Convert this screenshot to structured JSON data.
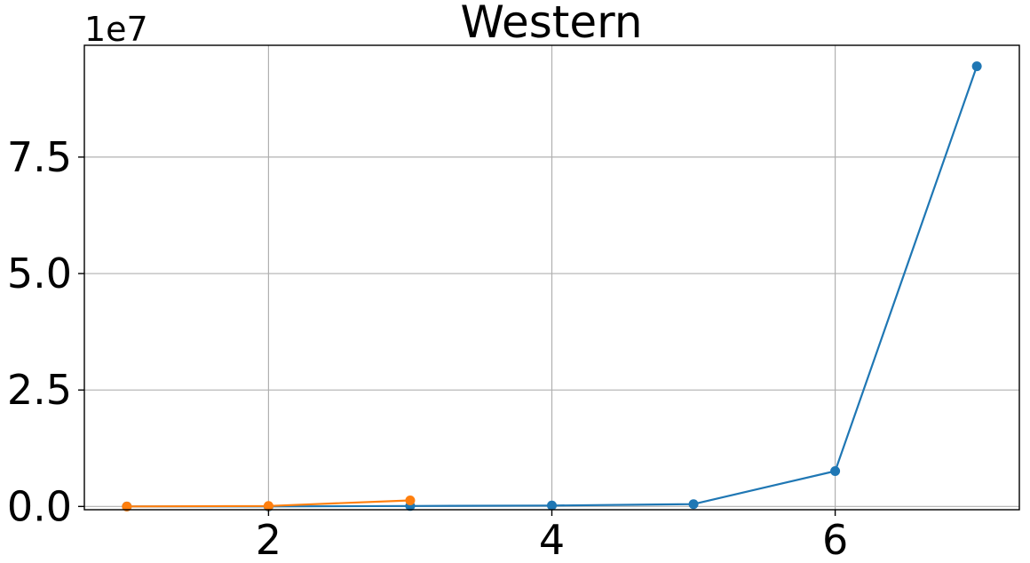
{
  "chart_data": {
    "type": "line",
    "title": "Western",
    "xlabel": "",
    "ylabel": "",
    "y_offset_label": "1e7",
    "xlim": [
      0.7,
      7.3
    ],
    "ylim": [
      -0.07,
      9.9
    ],
    "x_ticks": [
      2,
      4,
      6
    ],
    "x_tick_labels": [
      "2",
      "4",
      "6"
    ],
    "y_ticks": [
      0,
      2.5,
      5.0,
      7.5
    ],
    "y_tick_labels": [
      "0.0",
      "2.5",
      "5.0",
      "7.5"
    ],
    "grid": true,
    "legend": false,
    "series": [
      {
        "color": "#1f77b4",
        "x": [
          1,
          2,
          3,
          4,
          5,
          6,
          7
        ],
        "y": [
          0.0,
          0.0,
          0.01,
          0.02,
          0.05,
          0.76,
          9.45
        ]
      },
      {
        "color": "#ff7f0e",
        "x": [
          1,
          2,
          3
        ],
        "y": [
          0.0,
          0.01,
          0.13
        ]
      }
    ]
  }
}
